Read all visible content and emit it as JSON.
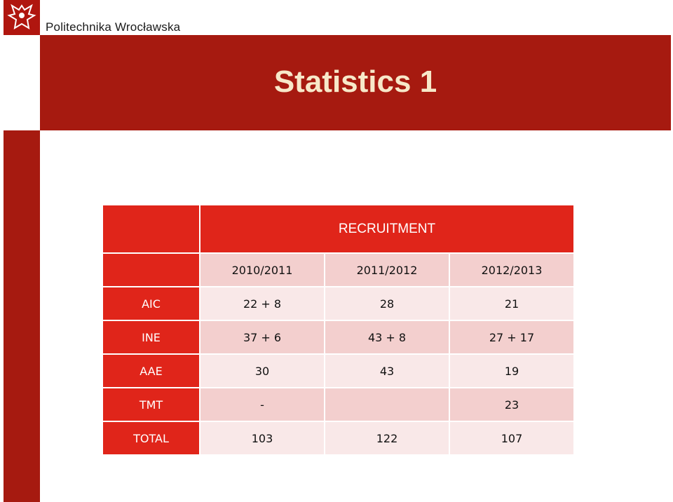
{
  "header": {
    "logo_text": "Politechnika Wrocławska",
    "title": "Statistics 1"
  },
  "table": {
    "caption": "RECRUITMENT",
    "columns": [
      "2010/2011",
      "2011/2012",
      "2012/2013"
    ],
    "rows": [
      {
        "label": "AIC",
        "cells": [
          "22 + 8",
          "28",
          "21"
        ]
      },
      {
        "label": "INE",
        "cells": [
          "37 + 6",
          "43 + 8",
          "27 + 17"
        ]
      },
      {
        "label": "AAE",
        "cells": [
          "30",
          "43",
          "19"
        ]
      },
      {
        "label": "TMT",
        "cells": [
          "-",
          null,
          "23"
        ]
      },
      {
        "label": "TOTAL",
        "cells": [
          "103",
          "122",
          "107"
        ]
      }
    ]
  }
}
